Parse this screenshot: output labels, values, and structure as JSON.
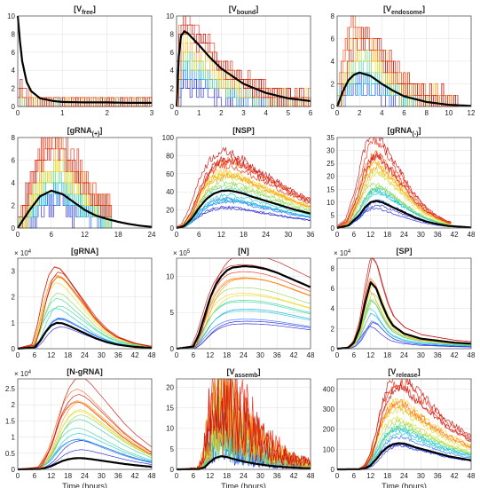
{
  "figure": {
    "xlabel": "Time (hours)"
  },
  "palette": [
    "#1f1fd6",
    "#2a6cff",
    "#17a9e6",
    "#19cfcf",
    "#3ad69a",
    "#8fdc4e",
    "#d8de2e",
    "#ffd21a",
    "#ffa01a",
    "#ff6a14",
    "#ee2a12",
    "#c81010"
  ],
  "chart_data": [
    {
      "type": "line",
      "title": "[V",
      "title_sub": "free",
      "title_end": "]",
      "xlim": [
        0,
        3
      ],
      "ylim": [
        0,
        10
      ],
      "xticks": [
        0,
        1,
        2,
        3
      ],
      "yticks": [
        0,
        2,
        4,
        6,
        8,
        10
      ],
      "mean": {
        "x": [
          0,
          0.05,
          0.1,
          0.2,
          0.3,
          0.5,
          0.8,
          1,
          1.5,
          2,
          2.5,
          3
        ],
        "y": [
          10,
          7.2,
          5.0,
          2.7,
          1.7,
          0.9,
          0.6,
          0.5,
          0.45,
          0.45,
          0.4,
          0.4
        ]
      },
      "ensemble": {
        "kind": "step",
        "n": 12,
        "max": 3,
        "tmax_frac": 1.0
      }
    },
    {
      "type": "line",
      "title": "[V",
      "title_sub": "bound",
      "title_end": "]",
      "xlim": [
        0,
        6
      ],
      "ylim": [
        0,
        10
      ],
      "xticks": [
        0,
        1,
        2,
        3,
        4,
        5,
        6
      ],
      "yticks": [
        0,
        2,
        4,
        6,
        8,
        10
      ],
      "mean": {
        "x": [
          0,
          0.1,
          0.2,
          0.35,
          0.5,
          1,
          1.5,
          2,
          3,
          4,
          5,
          6
        ],
        "y": [
          0,
          5.5,
          7.8,
          8.3,
          8.1,
          6.8,
          5.4,
          4.2,
          2.5,
          1.5,
          0.9,
          0.6
        ]
      },
      "ensemble": {
        "kind": "step",
        "n": 14,
        "max": 10,
        "tmax_frac": 1.0
      }
    },
    {
      "type": "line",
      "title": "[V",
      "title_sub": "endosome",
      "title_end": "]",
      "xlim": [
        0,
        12
      ],
      "ylim": [
        0,
        8
      ],
      "xticks": [
        0,
        2,
        4,
        6,
        8,
        10,
        12
      ],
      "yticks": [
        0,
        2,
        4,
        6,
        8
      ],
      "mean": {
        "x": [
          0,
          0.5,
          1,
          1.5,
          2,
          3,
          4,
          5,
          6,
          8,
          10,
          12
        ],
        "y": [
          0,
          1.3,
          2.3,
          2.8,
          3.0,
          2.7,
          2.0,
          1.4,
          0.9,
          0.4,
          0.15,
          0.05
        ]
      },
      "ensemble": {
        "kind": "step",
        "n": 12,
        "max": 7,
        "tmax_frac": 0.9
      }
    },
    {
      "type": "line",
      "title": "[gRNA",
      "title_sub": "(+)",
      "title_end": "]",
      "xlim": [
        0,
        24
      ],
      "ylim": [
        0,
        8
      ],
      "xticks": [
        0,
        6,
        12,
        18,
        24
      ],
      "yticks": [
        0,
        2,
        4,
        6,
        8
      ],
      "mean": {
        "x": [
          0,
          2,
          4,
          6,
          8,
          10,
          12,
          14,
          16,
          18,
          20,
          22,
          24
        ],
        "y": [
          0,
          1.5,
          2.8,
          3.3,
          3.0,
          2.3,
          1.6,
          1.1,
          0.8,
          0.55,
          0.35,
          0.2,
          0.1
        ]
      },
      "ensemble": {
        "kind": "step",
        "n": 12,
        "max": 8,
        "tmax_frac": 0.7
      }
    },
    {
      "type": "line",
      "title": "[NSP]",
      "title_sub": "",
      "title_end": "",
      "xlim": [
        0,
        36
      ],
      "ylim": [
        0,
        100
      ],
      "xticks": [
        0,
        6,
        12,
        18,
        24,
        30,
        36
      ],
      "yticks": [
        0,
        20,
        40,
        60,
        80,
        100
      ],
      "mean": {
        "x": [
          0,
          2,
          4,
          6,
          8,
          10,
          12,
          14,
          16,
          18,
          20,
          24,
          28,
          32,
          36
        ],
        "y": [
          0,
          2,
          10,
          22,
          32,
          38,
          41,
          41.5,
          40,
          38,
          35,
          30,
          25,
          20,
          16
        ]
      },
      "ensemble": {
        "kind": "noisy",
        "n": 20,
        "max": 82,
        "tmax_frac": 1.0
      }
    },
    {
      "type": "line",
      "title": "[gRNA",
      "title_sub": "(-)",
      "title_end": "]",
      "xlim": [
        0,
        48
      ],
      "ylim": [
        0,
        35
      ],
      "xticks": [
        0,
        6,
        12,
        18,
        24,
        30,
        36,
        42,
        48
      ],
      "yticks": [
        0,
        5,
        10,
        15,
        20,
        25,
        30,
        35
      ],
      "mean": {
        "x": [
          0,
          4,
          8,
          10,
          12,
          14,
          16,
          18,
          20,
          24,
          28,
          32,
          36,
          40,
          48
        ],
        "y": [
          0,
          1,
          5,
          8,
          10,
          10.5,
          10,
          9,
          8,
          6,
          4,
          2.5,
          1.5,
          0.8,
          0.2
        ]
      },
      "ensemble": {
        "kind": "noisy",
        "n": 20,
        "max": 32,
        "tmax_frac": 0.85
      }
    },
    {
      "type": "line",
      "title": "[gRNA]",
      "title_sub": "",
      "title_end": "",
      "exp": "4",
      "xlim": [
        0,
        48
      ],
      "ylim": [
        0,
        3.5
      ],
      "xticks": [
        0,
        6,
        12,
        18,
        24,
        30,
        36,
        42,
        48
      ],
      "yticks": [
        0,
        1,
        2,
        3
      ],
      "mean": {
        "x": [
          0,
          6,
          8,
          10,
          12,
          14,
          16,
          18,
          20,
          24,
          28,
          32,
          36,
          42,
          48
        ],
        "y": [
          0,
          0.05,
          0.3,
          0.65,
          0.9,
          1.0,
          0.98,
          0.9,
          0.8,
          0.6,
          0.4,
          0.25,
          0.15,
          0.07,
          0.03
        ]
      },
      "ensemble": {
        "kind": "smooth",
        "n": 16,
        "max": 3.5,
        "tmax_frac": 1.0
      }
    },
    {
      "type": "line",
      "title": "[N]",
      "title_sub": "",
      "title_end": "",
      "exp": "5",
      "xlim": [
        0,
        48
      ],
      "ylim": [
        0,
        12.5
      ],
      "xticks": [
        0,
        6,
        12,
        18,
        24,
        30,
        36,
        42,
        48
      ],
      "yticks": [
        0,
        5,
        10
      ],
      "mean": {
        "x": [
          0,
          6,
          8,
          10,
          12,
          14,
          16,
          18,
          20,
          24,
          28,
          32,
          36,
          42,
          48
        ],
        "y": [
          0,
          0.3,
          2,
          4.5,
          7,
          8.8,
          10,
          10.8,
          11.2,
          11.4,
          11.3,
          11,
          10.5,
          9.5,
          8.5
        ]
      },
      "ensemble": {
        "kind": "smooth",
        "n": 16,
        "max": 12.3,
        "tmax_frac": 1.0
      }
    },
    {
      "type": "line",
      "title": "[SP]",
      "title_sub": "",
      "title_end": "",
      "exp": "4",
      "xlim": [
        0,
        48
      ],
      "ylim": [
        0,
        9
      ],
      "xticks": [
        0,
        6,
        12,
        18,
        24,
        30,
        36,
        42,
        48
      ],
      "yticks": [
        0,
        2,
        4,
        6,
        8
      ],
      "mean": {
        "x": [
          0,
          4,
          6,
          8,
          10,
          12,
          14,
          16,
          18,
          20,
          24,
          30,
          36,
          42,
          48
        ],
        "y": [
          0,
          0.1,
          0.6,
          2,
          4.5,
          6.6,
          6.0,
          4.5,
          3.2,
          2.3,
          1.5,
          1.0,
          0.8,
          0.6,
          0.5
        ]
      },
      "ensemble": {
        "kind": "smooth",
        "n": 16,
        "max": 8.6,
        "tmax_frac": 1.0
      }
    },
    {
      "type": "line",
      "title": "[N-gRNA]",
      "title_sub": "",
      "title_end": "",
      "exp": "4",
      "xlim": [
        0,
        48
      ],
      "ylim": [
        0,
        2.8
      ],
      "xticks": [
        0,
        6,
        12,
        18,
        24,
        30,
        36,
        42,
        48
      ],
      "yticks": [
        0,
        0.5,
        1,
        1.5,
        2,
        2.5
      ],
      "mean": {
        "x": [
          0,
          8,
          10,
          12,
          14,
          16,
          18,
          20,
          22,
          24,
          26,
          30,
          34,
          38,
          42,
          48
        ],
        "y": [
          0,
          0.01,
          0.05,
          0.1,
          0.18,
          0.26,
          0.31,
          0.34,
          0.35,
          0.34,
          0.32,
          0.27,
          0.22,
          0.17,
          0.13,
          0.08
        ]
      },
      "ensemble": {
        "kind": "smooth",
        "n": 16,
        "max": 2.7,
        "tmax_frac": 1.0
      }
    },
    {
      "type": "line",
      "title": "[V",
      "title_sub": "assemb",
      "title_end": "]",
      "xlim": [
        0,
        48
      ],
      "ylim": [
        0,
        22
      ],
      "xticks": [
        0,
        6,
        12,
        18,
        24,
        30,
        36,
        42,
        48
      ],
      "yticks": [
        0,
        5,
        10,
        15,
        20
      ],
      "mean": {
        "x": [
          0,
          8,
          10,
          12,
          14,
          16,
          18,
          20,
          24,
          28,
          32,
          36,
          40,
          44,
          48
        ],
        "y": [
          0,
          0.05,
          0.5,
          1.8,
          2.8,
          3.2,
          3.0,
          2.6,
          1.9,
          1.4,
          1.0,
          0.7,
          0.5,
          0.35,
          0.25
        ]
      },
      "ensemble": {
        "kind": "spiky",
        "n": 16,
        "max": 23,
        "tmax_frac": 1.0
      }
    },
    {
      "type": "line",
      "title": "[V",
      "title_sub": "release",
      "title_end": "]",
      "xlim": [
        0,
        48
      ],
      "ylim": [
        0,
        450
      ],
      "xticks": [
        0,
        6,
        12,
        18,
        24,
        30,
        36,
        42,
        48
      ],
      "yticks": [
        0,
        100,
        200,
        300,
        400
      ],
      "mean": {
        "x": [
          0,
          8,
          10,
          12,
          14,
          16,
          18,
          20,
          22,
          24,
          26,
          28,
          32,
          36,
          40,
          44,
          48
        ],
        "y": [
          0,
          0.5,
          5,
          20,
          50,
          85,
          110,
          125,
          130,
          128,
          120,
          110,
          95,
          80,
          65,
          55,
          45
        ]
      },
      "ensemble": {
        "kind": "noisy",
        "n": 20,
        "max": 420,
        "tmax_frac": 1.0
      }
    }
  ]
}
